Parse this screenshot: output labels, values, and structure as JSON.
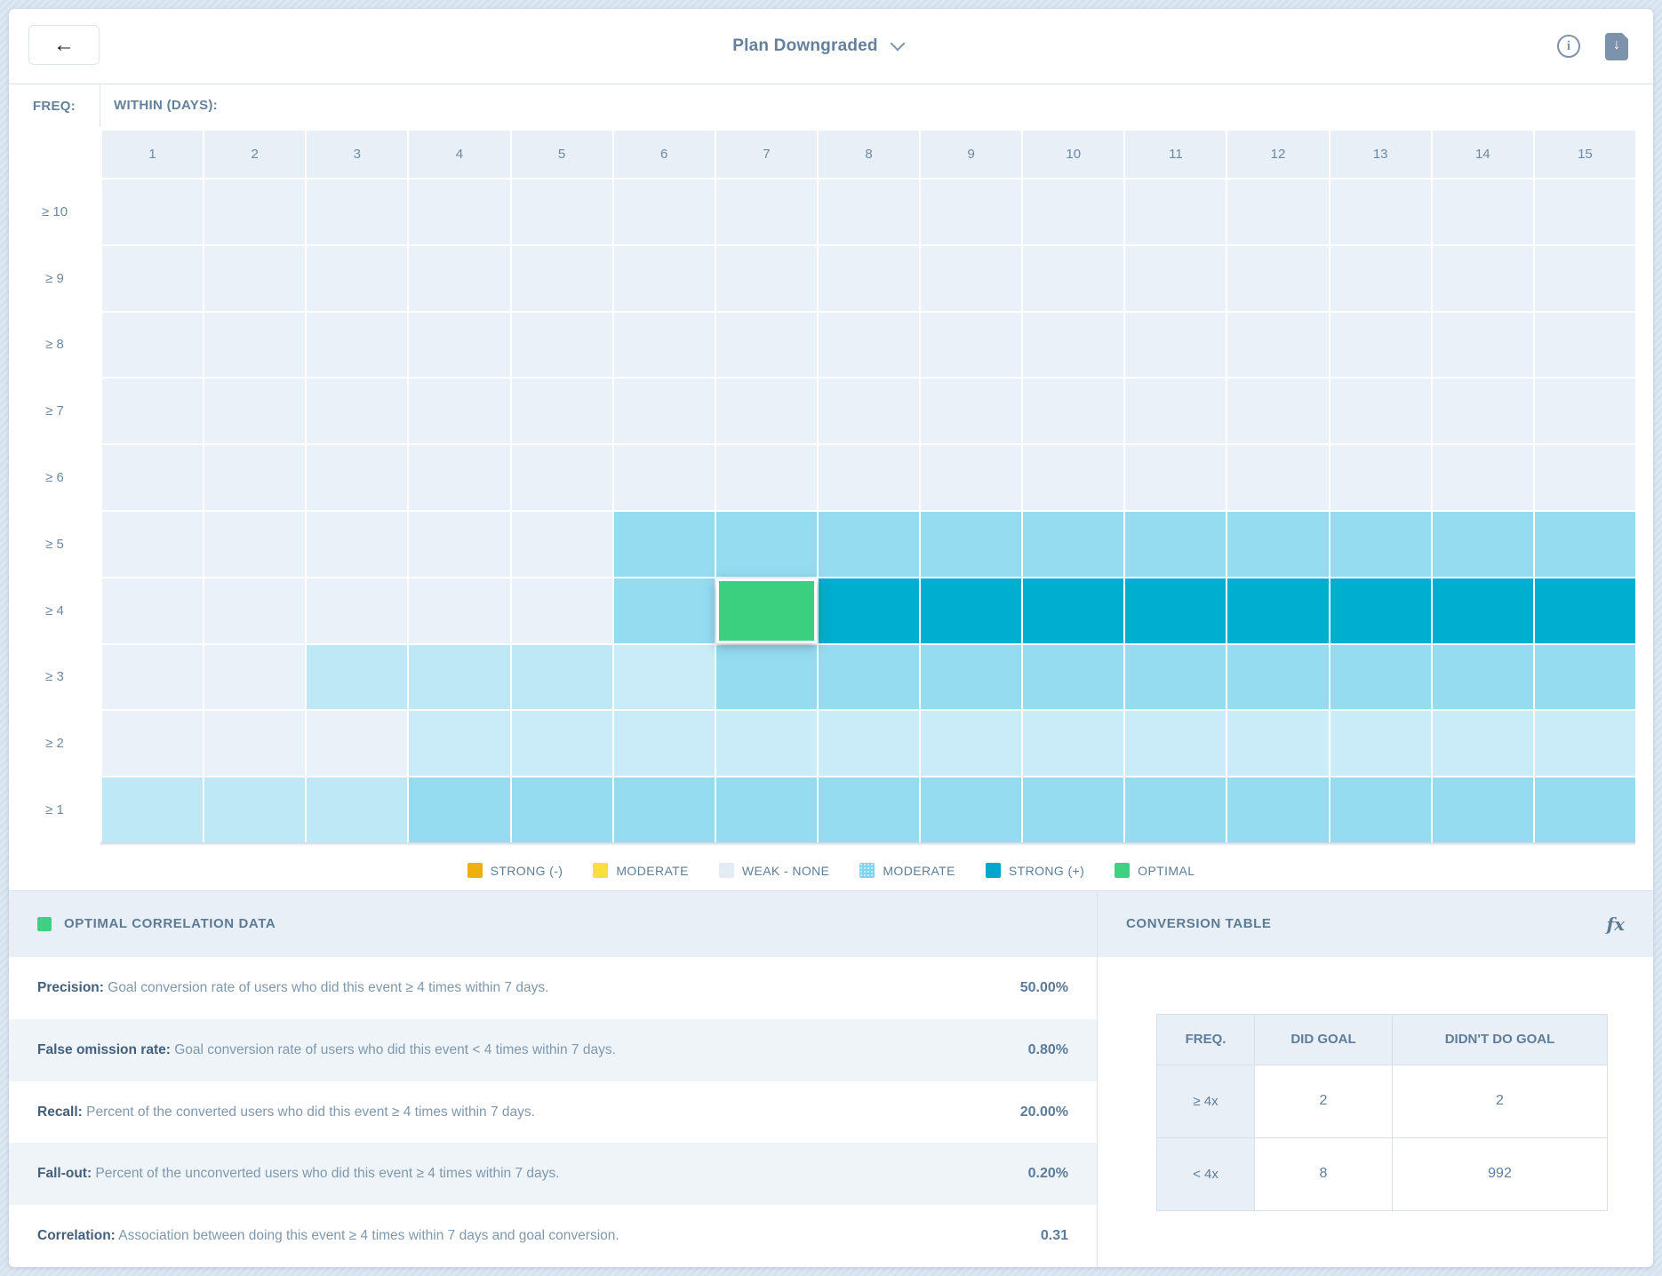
{
  "header": {
    "title": "Plan Downgraded"
  },
  "axis": {
    "freq_label": "FREQ:",
    "within_label": "WITHIN (DAYS):",
    "columns": [
      "1",
      "2",
      "3",
      "4",
      "5",
      "6",
      "7",
      "8",
      "9",
      "10",
      "11",
      "12",
      "13",
      "14",
      "15"
    ]
  },
  "heatmap": {
    "colors": {
      "weak": "#eaf1f8",
      "light1": "#bfe8f6",
      "light2": "#c9ecf8",
      "moderate": "#95dcf1",
      "strong": "#00aecf",
      "optimal": "#3bcf80"
    },
    "rows": [
      {
        "label": "≥ 10",
        "cells": [
          "weak",
          "weak",
          "weak",
          "weak",
          "weak",
          "weak",
          "weak",
          "weak",
          "weak",
          "weak",
          "weak",
          "weak",
          "weak",
          "weak",
          "weak"
        ]
      },
      {
        "label": "≥ 9",
        "cells": [
          "weak",
          "weak",
          "weak",
          "weak",
          "weak",
          "weak",
          "weak",
          "weak",
          "weak",
          "weak",
          "weak",
          "weak",
          "weak",
          "weak",
          "weak"
        ]
      },
      {
        "label": "≥ 8",
        "cells": [
          "weak",
          "weak",
          "weak",
          "weak",
          "weak",
          "weak",
          "weak",
          "weak",
          "weak",
          "weak",
          "weak",
          "weak",
          "weak",
          "weak",
          "weak"
        ]
      },
      {
        "label": "≥ 7",
        "cells": [
          "weak",
          "weak",
          "weak",
          "weak",
          "weak",
          "weak",
          "weak",
          "weak",
          "weak",
          "weak",
          "weak",
          "weak",
          "weak",
          "weak",
          "weak"
        ]
      },
      {
        "label": "≥ 6",
        "cells": [
          "weak",
          "weak",
          "weak",
          "weak",
          "weak",
          "weak",
          "weak",
          "weak",
          "weak",
          "weak",
          "weak",
          "weak",
          "weak",
          "weak",
          "weak"
        ]
      },
      {
        "label": "≥ 5",
        "cells": [
          "weak",
          "weak",
          "weak",
          "weak",
          "weak",
          "moderate",
          "moderate",
          "moderate",
          "moderate",
          "moderate",
          "moderate",
          "moderate",
          "moderate",
          "moderate",
          "moderate"
        ]
      },
      {
        "label": "≥ 4",
        "cells": [
          "weak",
          "weak",
          "weak",
          "weak",
          "weak",
          "moderate",
          "optimal",
          "strong",
          "strong",
          "strong",
          "strong",
          "strong",
          "strong",
          "strong",
          "strong"
        ]
      },
      {
        "label": "≥ 3",
        "cells": [
          "weak",
          "weak",
          "light1",
          "light1",
          "light1",
          "light2",
          "moderate",
          "moderate",
          "moderate",
          "moderate",
          "moderate",
          "moderate",
          "moderate",
          "moderate",
          "moderate"
        ]
      },
      {
        "label": "≥ 2",
        "cells": [
          "weak",
          "weak",
          "weak",
          "light2",
          "light2",
          "light2",
          "light2",
          "light2",
          "light2",
          "light2",
          "light2",
          "light2",
          "light2",
          "light2",
          "light2"
        ]
      },
      {
        "label": "≥ 1",
        "cells": [
          "light1",
          "light1",
          "light1",
          "moderate",
          "moderate",
          "moderate",
          "moderate",
          "moderate",
          "moderate",
          "moderate",
          "moderate",
          "moderate",
          "moderate",
          "moderate",
          "moderate"
        ]
      }
    ],
    "selected_cell": {
      "row": "≥ 4",
      "column": "7"
    }
  },
  "legend": {
    "items": [
      {
        "label": "STRONG (-)",
        "color": "#efb00e",
        "pattern": false
      },
      {
        "label": "MODERATE",
        "color": "#f8df3d",
        "pattern": false
      },
      {
        "label": "WEAK - NONE",
        "color": "#e3ecf4",
        "pattern": false
      },
      {
        "label": "MODERATE",
        "color": "#7fd4ee",
        "pattern": true
      },
      {
        "label": "STRONG (+)",
        "color": "#00a6ce",
        "pattern": false
      },
      {
        "label": "OPTIMAL",
        "color": "#3ed183",
        "pattern": false
      }
    ]
  },
  "optimal_panel": {
    "title": "OPTIMAL CORRELATION DATA",
    "chip_color": "#3ed183",
    "rows": [
      {
        "term": "Precision:",
        "desc": "Goal conversion rate of users who did this event ≥ 4 times within 7 days.",
        "value": "50.00%"
      },
      {
        "term": "False omission rate:",
        "desc": "Goal conversion rate of users who did this event < 4 times within 7 days.",
        "value": "0.80%"
      },
      {
        "term": "Recall:",
        "desc": "Percent of the converted users who did this event ≥ 4 times within 7 days.",
        "value": "20.00%"
      },
      {
        "term": "Fall-out:",
        "desc": "Percent of the unconverted users who did this event ≥ 4 times within 7 days.",
        "value": "0.20%"
      },
      {
        "term": "Correlation:",
        "desc": "Association between doing this event ≥ 4 times within 7 days and goal conversion.",
        "value": "0.31"
      }
    ]
  },
  "conversion_panel": {
    "title": "CONVERSION TABLE",
    "fx_label": "fx",
    "columns": [
      "FREQ.",
      "DID GOAL",
      "DIDN'T DO GOAL"
    ],
    "rows": [
      {
        "freq": "≥ 4x",
        "did": "2",
        "didnt": "2"
      },
      {
        "freq": "< 4x",
        "did": "8",
        "didnt": "992"
      }
    ]
  }
}
